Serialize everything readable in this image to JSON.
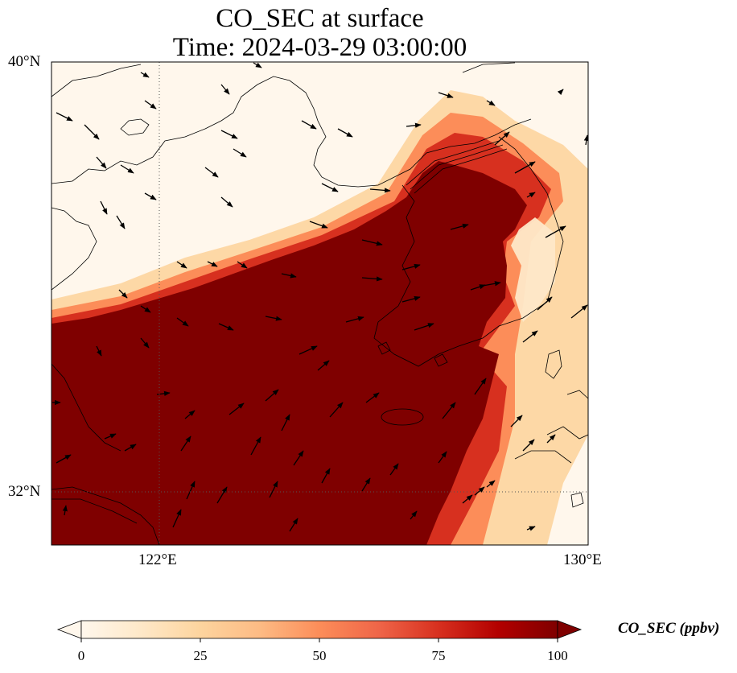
{
  "title": {
    "line1": "CO_SEC at surface",
    "line2": "Time: 2024-03-29 03:00:00"
  },
  "map": {
    "projection": "PlateCarree",
    "lon_range": [
      120.0,
      130.0
    ],
    "lat_range": [
      31.0,
      40.0
    ],
    "gridlines": {
      "lon": [
        122,
        130
      ],
      "lat": [
        32,
        40
      ],
      "style": "dotted"
    },
    "lon_ticks": [
      "122°E",
      "130°E"
    ],
    "lat_ticks": [
      "40°N",
      "32°N"
    ],
    "field_variable": "CO_SEC",
    "field_units": "ppbv",
    "vector_field": "wind arrows"
  },
  "colorbar": {
    "label": "CO_SEC (ppbv)",
    "ticks": [
      "0",
      "25",
      "50",
      "75",
      "100"
    ],
    "range": [
      0,
      100
    ],
    "extend": "both",
    "colormap": "OrRd",
    "stops": [
      "#fff7ec",
      "#fee8c8",
      "#fdd49e",
      "#fdbb84",
      "#fc8d59",
      "#ef6548",
      "#d7301f",
      "#b30000",
      "#7f0000"
    ]
  }
}
